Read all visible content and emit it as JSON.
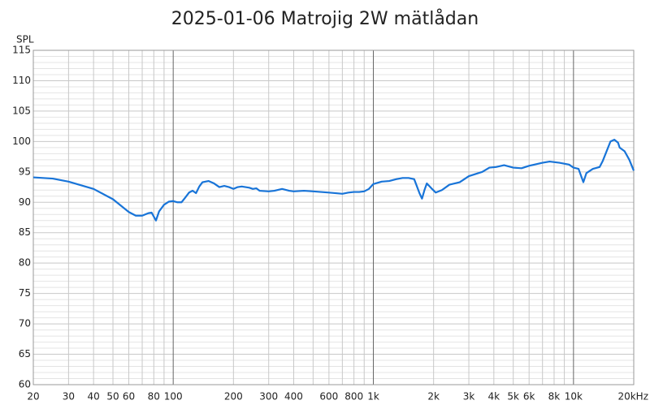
{
  "chart_data": {
    "type": "line",
    "title": "2025-01-06 Matrojig 2W mätlådan",
    "y_label": "SPL",
    "x_scale": "log",
    "grid": true,
    "xlim": [
      20,
      20000
    ],
    "ylim": [
      60,
      115
    ],
    "xticks": [
      20,
      30,
      40,
      50,
      60,
      80,
      100,
      200,
      300,
      400,
      600,
      800,
      {
        "value": 1000,
        "label": "1k"
      },
      {
        "value": 2000,
        "label": "2k"
      },
      {
        "value": 3000,
        "label": "3k"
      },
      {
        "value": 4000,
        "label": "4k"
      },
      {
        "value": 5000,
        "label": "5k"
      },
      {
        "value": 6000,
        "label": "6k"
      },
      {
        "value": 8000,
        "label": "8k"
      },
      {
        "value": 10000,
        "label": "10k"
      },
      {
        "value": 20000,
        "label": "20kHz"
      }
    ],
    "x_minor_grid": [
      70,
      90,
      500,
      700,
      900,
      7000,
      9000
    ],
    "yticks": [
      60,
      65,
      70,
      75,
      80,
      85,
      90,
      95,
      100,
      105,
      110,
      115
    ],
    "y_minor_grid": [
      61,
      62,
      63,
      64,
      66,
      67,
      68,
      69,
      71,
      72,
      73,
      74,
      76,
      77,
      78,
      79,
      81,
      82,
      83,
      84,
      86,
      87,
      88,
      89,
      91,
      92,
      93,
      94,
      96,
      97,
      98,
      99,
      101,
      102,
      103,
      104,
      106,
      107,
      108,
      109,
      111,
      112,
      113,
      114
    ],
    "series": [
      {
        "color": "#1874d8",
        "x": [
          20,
          25,
          30,
          40,
          50,
          55,
          60,
          65,
          70,
          75,
          78,
          82,
          85,
          90,
          95,
          100,
          105,
          110,
          115,
          120,
          125,
          130,
          135,
          140,
          150,
          160,
          170,
          180,
          190,
          200,
          210,
          220,
          240,
          250,
          260,
          270,
          300,
          320,
          350,
          380,
          400,
          450,
          500,
          600,
          650,
          700,
          750,
          800,
          850,
          900,
          950,
          1000,
          1100,
          1200,
          1300,
          1400,
          1500,
          1600,
          1700,
          1750,
          1800,
          1850,
          1950,
          2050,
          2200,
          2400,
          2700,
          3000,
          3500,
          3800,
          4100,
          4500,
          5000,
          5500,
          6000,
          7000,
          7600,
          8500,
          9500,
          10000,
          10600,
          11200,
          11600,
          12500,
          13500,
          14000,
          15300,
          16000,
          16700,
          17000,
          18000,
          19000,
          20000
        ],
        "values": [
          94.1,
          93.9,
          93.4,
          92.2,
          90.5,
          89.4,
          88.4,
          87.8,
          87.8,
          88.2,
          88.3,
          87.0,
          88.5,
          89.6,
          90.1,
          90.2,
          90.0,
          90.0,
          90.8,
          91.6,
          91.9,
          91.5,
          92.6,
          93.3,
          93.5,
          93.1,
          92.5,
          92.7,
          92.5,
          92.2,
          92.5,
          92.6,
          92.4,
          92.2,
          92.3,
          91.9,
          91.8,
          91.9,
          92.2,
          91.9,
          91.8,
          91.9,
          91.8,
          91.6,
          91.5,
          91.4,
          91.6,
          91.7,
          91.7,
          91.8,
          92.2,
          93.0,
          93.4,
          93.5,
          93.8,
          94.0,
          94.0,
          93.8,
          91.5,
          90.6,
          92.0,
          93.1,
          92.3,
          91.6,
          92.0,
          92.9,
          93.3,
          94.3,
          95.0,
          95.7,
          95.8,
          96.1,
          95.7,
          95.6,
          96.0,
          96.5,
          96.7,
          96.5,
          96.2,
          95.7,
          95.5,
          93.3,
          94.8,
          95.5,
          95.8,
          96.8,
          100.0,
          100.3,
          99.8,
          99.0,
          98.4,
          97.0,
          95.2
        ]
      }
    ]
  }
}
